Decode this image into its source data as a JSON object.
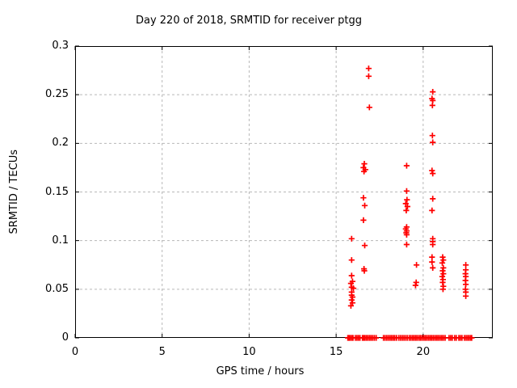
{
  "chart_data": {
    "type": "scatter",
    "title": "Day 220 of 2018, SRMTID for receiver ptgg",
    "xlabel": "GPS time / hours",
    "ylabel": "SRMTID / TECUs",
    "xlim": [
      0,
      24
    ],
    "ylim": [
      0,
      0.3
    ],
    "xticks": [
      {
        "v": 0,
        "label": "0"
      },
      {
        "v": 5,
        "label": "5"
      },
      {
        "v": 10,
        "label": "10"
      },
      {
        "v": 15,
        "label": "15"
      },
      {
        "v": 20,
        "label": "20"
      }
    ],
    "yticks": [
      {
        "v": 0,
        "label": "0"
      },
      {
        "v": 0.05,
        "label": "0.05"
      },
      {
        "v": 0.1,
        "label": "0.1"
      },
      {
        "v": 0.15,
        "label": "0.15"
      },
      {
        "v": 0.2,
        "label": "0.2"
      },
      {
        "v": 0.25,
        "label": "0.25"
      },
      {
        "v": 0.3,
        "label": "0.3"
      }
    ],
    "grid": true,
    "legend": "none",
    "marker": "plus",
    "marker_color": "#ff0000",
    "border_color": "#000000",
    "grid_color": "#b8b8b8",
    "background": "#ffffff",
    "series": [
      {
        "name": "SRMTID",
        "points": [
          [
            16.87,
            0.277
          ],
          [
            16.87,
            0.269
          ],
          [
            16.91,
            0.237
          ],
          [
            20.55,
            0.253
          ],
          [
            20.51,
            0.246
          ],
          [
            20.55,
            0.244
          ],
          [
            20.53,
            0.239
          ],
          [
            20.53,
            0.208
          ],
          [
            20.55,
            0.201
          ],
          [
            16.62,
            0.179
          ],
          [
            16.57,
            0.175
          ],
          [
            16.68,
            0.173
          ],
          [
            16.6,
            0.171
          ],
          [
            19.05,
            0.177
          ],
          [
            20.51,
            0.172
          ],
          [
            20.55,
            0.169
          ],
          [
            19.05,
            0.151
          ],
          [
            16.57,
            0.144
          ],
          [
            16.64,
            0.136
          ],
          [
            16.57,
            0.121
          ],
          [
            19.07,
            0.142
          ],
          [
            19.0,
            0.138
          ],
          [
            19.1,
            0.135
          ],
          [
            19.03,
            0.131
          ],
          [
            20.55,
            0.143
          ],
          [
            20.51,
            0.131
          ],
          [
            19.05,
            0.114
          ],
          [
            19.0,
            0.112
          ],
          [
            19.05,
            0.11
          ],
          [
            19.03,
            0.108
          ],
          [
            19.05,
            0.106
          ],
          [
            19.05,
            0.096
          ],
          [
            15.89,
            0.102
          ],
          [
            16.64,
            0.095
          ],
          [
            20.55,
            0.102
          ],
          [
            20.55,
            0.099
          ],
          [
            20.55,
            0.096
          ],
          [
            15.89,
            0.08
          ],
          [
            20.51,
            0.083
          ],
          [
            20.51,
            0.078
          ],
          [
            20.55,
            0.072
          ],
          [
            19.62,
            0.075
          ],
          [
            19.6,
            0.057
          ],
          [
            19.56,
            0.054
          ],
          [
            16.6,
            0.071
          ],
          [
            16.62,
            0.069
          ],
          [
            15.89,
            0.064
          ],
          [
            15.94,
            0.058
          ],
          [
            15.85,
            0.056
          ],
          [
            15.89,
            0.052
          ],
          [
            15.99,
            0.051
          ],
          [
            15.89,
            0.047
          ],
          [
            15.89,
            0.044
          ],
          [
            15.94,
            0.042
          ],
          [
            15.89,
            0.039
          ],
          [
            15.94,
            0.036
          ],
          [
            15.85,
            0.033
          ],
          [
            21.12,
            0.083
          ],
          [
            21.16,
            0.08
          ],
          [
            21.1,
            0.077
          ],
          [
            21.16,
            0.072
          ],
          [
            21.12,
            0.069
          ],
          [
            21.16,
            0.066
          ],
          [
            21.1,
            0.063
          ],
          [
            21.14,
            0.06
          ],
          [
            21.12,
            0.057
          ],
          [
            21.16,
            0.053
          ],
          [
            21.14,
            0.05
          ],
          [
            22.45,
            0.075
          ],
          [
            22.45,
            0.07
          ],
          [
            22.43,
            0.066
          ],
          [
            22.45,
            0.063
          ],
          [
            22.43,
            0.059
          ],
          [
            22.45,
            0.055
          ],
          [
            22.43,
            0.05
          ],
          [
            22.45,
            0.047
          ],
          [
            22.45,
            0.043
          ],
          [
            15.67,
            0
          ],
          [
            15.74,
            0
          ],
          [
            15.81,
            0
          ],
          [
            15.9,
            0
          ],
          [
            15.97,
            0
          ],
          [
            16.1,
            0
          ],
          [
            16.19,
            0
          ],
          [
            16.28,
            0
          ],
          [
            16.37,
            0
          ],
          [
            16.51,
            0
          ],
          [
            16.58,
            0
          ],
          [
            16.65,
            0
          ],
          [
            16.74,
            0
          ],
          [
            16.83,
            0
          ],
          [
            16.92,
            0
          ],
          [
            17.01,
            0
          ],
          [
            17.1,
            0
          ],
          [
            17.2,
            0
          ],
          [
            17.3,
            0
          ],
          [
            17.72,
            0
          ],
          [
            17.81,
            0
          ],
          [
            17.91,
            0
          ],
          [
            18.0,
            0
          ],
          [
            18.1,
            0
          ],
          [
            18.19,
            0
          ],
          [
            18.28,
            0
          ],
          [
            18.37,
            0
          ],
          [
            18.47,
            0
          ],
          [
            18.6,
            0
          ],
          [
            18.7,
            0
          ],
          [
            18.8,
            0
          ],
          [
            18.9,
            0
          ],
          [
            19.0,
            0
          ],
          [
            19.1,
            0
          ],
          [
            19.21,
            0
          ],
          [
            19.3,
            0
          ],
          [
            19.4,
            0
          ],
          [
            19.49,
            0
          ],
          [
            19.58,
            0
          ],
          [
            19.67,
            0
          ],
          [
            19.77,
            0
          ],
          [
            19.86,
            0
          ],
          [
            19.95,
            0
          ],
          [
            20.05,
            0
          ],
          [
            20.14,
            0
          ],
          [
            20.23,
            0
          ],
          [
            20.33,
            0
          ],
          [
            20.42,
            0
          ],
          [
            20.51,
            0
          ],
          [
            20.6,
            0
          ],
          [
            20.7,
            0
          ],
          [
            20.79,
            0
          ],
          [
            20.88,
            0
          ],
          [
            20.98,
            0
          ],
          [
            21.07,
            0
          ],
          [
            21.16,
            0
          ],
          [
            21.26,
            0
          ],
          [
            21.49,
            0
          ],
          [
            21.58,
            0
          ],
          [
            21.67,
            0
          ],
          [
            21.81,
            0
          ],
          [
            21.9,
            0
          ],
          [
            22.05,
            0
          ],
          [
            22.14,
            0
          ],
          [
            22.23,
            0
          ],
          [
            22.37,
            0
          ],
          [
            22.47,
            0
          ],
          [
            22.56,
            0
          ],
          [
            22.65,
            0
          ],
          [
            22.74,
            0
          ],
          [
            22.79,
            0
          ]
        ]
      }
    ]
  }
}
